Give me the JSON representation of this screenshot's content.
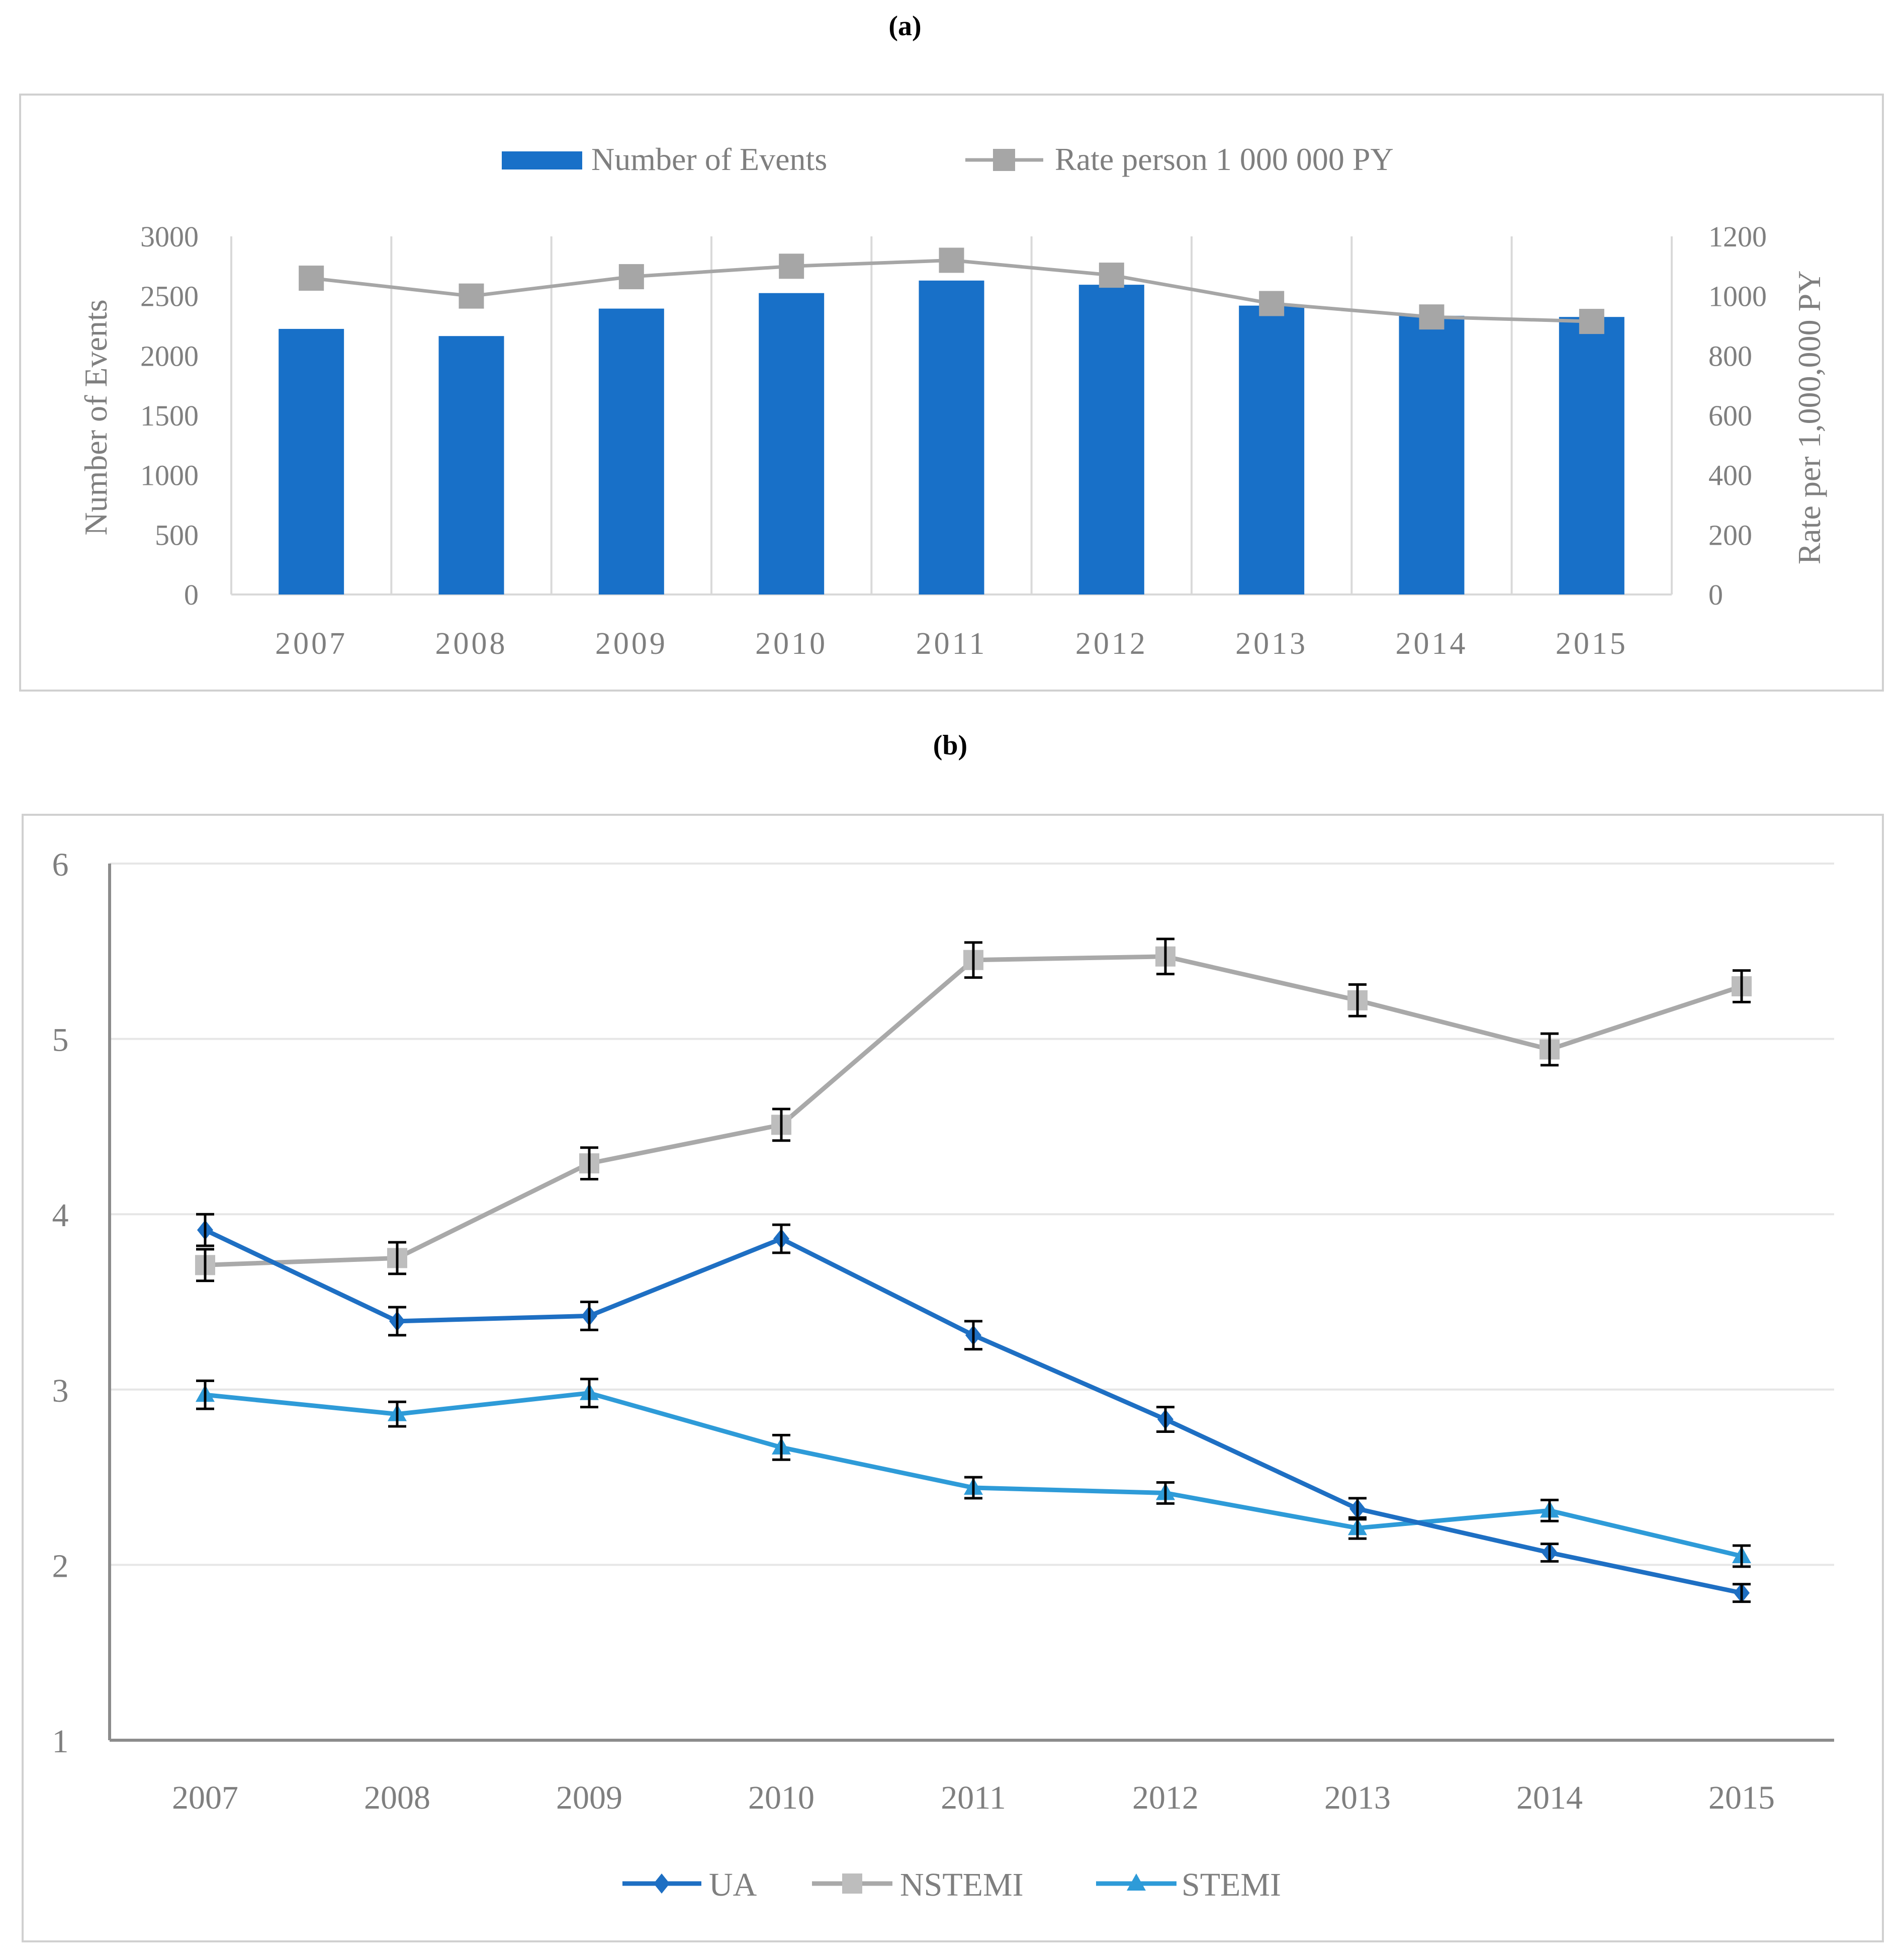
{
  "panels": {
    "a": {
      "label": "(a)"
    },
    "b": {
      "label": "(b)"
    }
  },
  "colors": {
    "bar": "#1870C8",
    "rate_line": "#A6A6A6",
    "rate_marker": "#A6A6A6",
    "ua": "#1E6FC3",
    "nstemi": "#A9A9A9",
    "stemi": "#2E9BD8",
    "axis_text": "#7F7F7F",
    "grid": "#D9D9D9",
    "frame": "#D0D0D0",
    "errorbar": "#000000"
  },
  "chart_data": [
    {
      "id": "a",
      "type": "bar",
      "categories": [
        "2007",
        "2008",
        "2009",
        "2010",
        "2011",
        "2012",
        "2013",
        "2014",
        "2015"
      ],
      "series": [
        {
          "name": "Number of Events",
          "type": "bar",
          "axis": "left",
          "values": [
            2225,
            2165,
            2395,
            2525,
            2630,
            2595,
            2420,
            2335,
            2325
          ]
        },
        {
          "name": "Rate person 1 000 000 PY",
          "type": "line",
          "marker": "square",
          "axis": "right",
          "values": [
            1060,
            1000,
            1065,
            1100,
            1120,
            1070,
            975,
            930,
            915
          ]
        }
      ],
      "ylabel": "Number of Events",
      "y2label": "Rate per 1,000,000 PY",
      "ylim": [
        0,
        3000
      ],
      "y2lim": [
        0,
        1200
      ],
      "yticks": [
        "0",
        "500",
        "1000",
        "1500",
        "2000",
        "2500",
        "3000"
      ],
      "y2ticks": [
        "0",
        "200",
        "400",
        "600",
        "800",
        "1000",
        "1200"
      ],
      "legend": "top",
      "grid": "vertical"
    },
    {
      "id": "b",
      "type": "line",
      "categories": [
        "2007",
        "2008",
        "2009",
        "2010",
        "2011",
        "2012",
        "2013",
        "2014",
        "2015"
      ],
      "series": [
        {
          "name": "UA",
          "marker": "diamond",
          "values": [
            3.91,
            3.39,
            3.42,
            3.86,
            3.31,
            2.83,
            2.32,
            2.07,
            1.84
          ],
          "error": [
            0.09,
            0.08,
            0.08,
            0.08,
            0.08,
            0.07,
            0.06,
            0.05,
            0.05
          ]
        },
        {
          "name": "NSTEMI",
          "marker": "square",
          "values": [
            3.71,
            3.75,
            4.29,
            4.51,
            5.45,
            5.47,
            5.22,
            4.94,
            5.3
          ],
          "error": [
            0.09,
            0.09,
            0.09,
            0.09,
            0.1,
            0.1,
            0.09,
            0.09,
            0.09
          ]
        },
        {
          "name": "STEMI",
          "marker": "triangle",
          "values": [
            2.97,
            2.86,
            2.98,
            2.67,
            2.44,
            2.41,
            2.21,
            2.31,
            2.05
          ],
          "error": [
            0.08,
            0.07,
            0.08,
            0.07,
            0.06,
            0.06,
            0.06,
            0.06,
            0.06
          ]
        }
      ],
      "ylim": [
        1,
        6
      ],
      "yticks": [
        "1",
        "2",
        "3",
        "4",
        "5",
        "6"
      ],
      "legend": "bottom",
      "grid": "horizontal"
    }
  ]
}
